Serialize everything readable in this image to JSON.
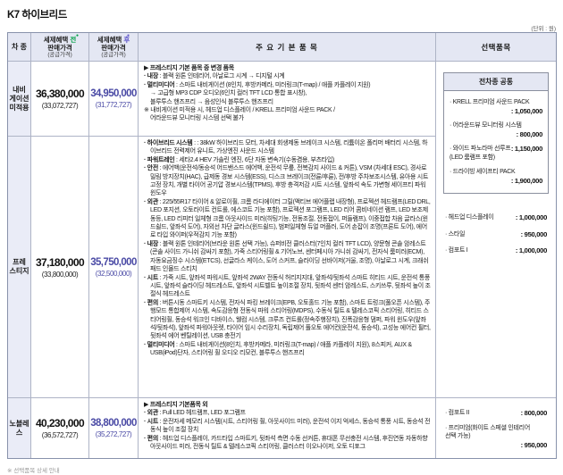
{
  "page": {
    "title": "K7 하이브리드",
    "unit_note": "(단위 : 원)",
    "footnote": "※ 선택품목 상세 안내"
  },
  "colors": {
    "header_bg": "#e4e7f3",
    "trim_bg": "#eaecf7",
    "accent_before": "#00a043",
    "accent_after": "#5a51c8",
    "price_after": "#4a4aa5",
    "border": "#aeb4c6"
  },
  "table": {
    "header": {
      "model": "차 종",
      "before": {
        "prefix": "세제혜택",
        "accent": "전",
        "dot": "●",
        "line2": "판매가격",
        "line3": "(공급가격)"
      },
      "after": {
        "prefix": "세제혜택",
        "accent": "후",
        "dot": "●",
        "line2": "판매가격",
        "line3": "(공급가격)"
      },
      "items": "주 요 기 본 품 목",
      "options": "선택품목"
    },
    "rows": [
      {
        "trim": "내비\n게이션\n미적용",
        "price_before": "36,380,000",
        "supply_before": "(33,072,727)",
        "price_after": "34,950,000",
        "supply_after": "(31,772,727)",
        "section_header": "▶ 프레스티지 기본 품목 중 변경 품목",
        "items": [
          {
            "label": "· 내장",
            "text": " : 블랙 원톤 인테리어, 아날로그 시계 → 디지털 시계"
          },
          {
            "label": "· 멀티미디어",
            "text": " : 스마트 내비게이션 (8인치, 후방카메라, 미러링크(T-map) / 애플 카플레이 지원)\n→ 고급형 MP3 CDP 오디오(6인치 컬러 TFT LCD 통합 표시창),\n블루투스 핸즈프리 → 음성인식 블루투스 핸즈프리"
          },
          {
            "label": "",
            "text": "※ 내비게이션 미적용 시, 헤드업 디스플레이 / KRELL 프리미엄 사운드 PACK /\n어라운드뷰 모니터링 시스템 선택 불가"
          }
        ]
      },
      {
        "trim": "프레\n스티지",
        "price_before": "37,180,000",
        "supply_before": "(33,800,000)",
        "price_after": "35,750,000",
        "supply_after": "(32,500,000)",
        "items": [
          {
            "label": "· 하이브리드 시스템",
            "text": " : : 38kW 하이브리드 모터, 차세대 회생제동 브레이크 시스템, 리튬이온 폴리머 배터리 시스템, 하이브리드 전력제어 유니트, 가상엔진 사운드 시스템"
          },
          {
            "label": "· 파워트레인",
            "text": " : 세타2.4 HEV 가솔린 엔진, 6단 자동 변속기(수동겸용, 부츠타입)"
          },
          {
            "label": "· 안전",
            "text": " : 에어백(운전석/동승석 어드밴스드 에어백, 운전석 무릎, 전복감지 사이드 & 커튼), VSM (차세대 ESC), 경사로 밀림 방지장치(HAC), 급제동 경보 시스템(ESS), 디스크 브레이크(전륜/후륜), 전/후방 주차보조시스템, 유아용 시트 고정 장치, 개별 타이어 공기압 경보시스템(TPMS), 후방 충격저감 시트 시스템, 앞좌석 속도 가변형 세이프티 파워 윈도우"
          },
          {
            "label": "· 외관",
            "text": " : 225/55R17 타이어 & 알로이휠, 크롬 라디에이터 그릴(액티브 에어플랩 내장형), 프로젝션 헤드램프(LED DRL, LED 포지션, 오토라이트 컨트롤, 에스코트 기능 포함), 프로젝션 포그램프, LED 리어 콤비네이션 램프, LED 보조제동등, LED 리피터 일체형 크롬 아웃사이드 미러(히팅기능, 전동조절, 전동접이, 퍼들램프), 이중접합 차음 글라스(윈드쉴드, 앞좌석 도어), 자외선 차단 글라스(윈드쉴드), 범퍼일체형 듀얼 머플러, 도어 손잡이 조명(프론트 도어), 에어로 타입 와이퍼(우적감지 기능 포함)"
          },
          {
            "label": "· 내장",
            "text": " : 블랙 원톤 인테리어(브라운 원톤 선택 가능), 슈퍼비전 클러스터(7인치 컬러 TFT LCD), 양문형 콘솔 암레스트 (콘솔 사이드 가니쉬 감싸기 포함), 가죽 스티어링휠 & 기어노브, 센터페시아 가니쉬 감싸기, 전자식 룸미러(ECM), 자동요금징수 시스템(ETCS), 선글라스 케이스, 도어 스커프, 슬라이딩 선바이저(거울, 조명), 아날로그 시계, 크래쉬패드 인몰드 스티치"
          },
          {
            "label": "· 시트",
            "text": " : 가죽 시트, 앞좌석 파워시트, 앞좌석 2WAY 전동식 허리지지대, 앞좌석/뒷좌석 스마트 히티드 시트, 운전석 통풍 시트, 앞좌석 슬라이딩 헤드레스트, 앞좌석 시트벨트 높이조절 장치, 뒷좌석 센터 암레스트, 스키쓰루, 뒷좌석 높이 조절식 헤드레스트"
          },
          {
            "label": "· 편의",
            "text": " : 버튼시동 스마트키 시스템, 전자식 파킹 브레이크(EPB, 오토홀드 기능 포함), 스마트 트렁크(풀오픈 시스템), 주행모드 통합제어 시스템, 속도감응형 전동식 파워 스티어링(MDPS), 수동식 틸트 & 텔레스코픽 스티어링, 히티드 스티어링휠, 동승석 워크인 디바이스, 웰컴 시스템, 크루즈 컨트롤(정속주행장치), 진폭감응형 댐퍼, 파워 윈도우(앞좌석/뒷좌석), 앞좌석 파워아웃렛, 타이어 임시 수리장치, 독립제어 풀오토 에어컨(운전석, 동승석), 고성능 에어컨 필터, 뒷좌석 에어 벤틸레이션, USB 충전기"
          },
          {
            "label": "· 멀티미디어",
            "text": " : 스마트 내비게이션(8인치, 후방카메라, 미러링크(T-map) / 애플 카플레이 지원), 8스피커, AUX & USB(iPod)단자, 스티어링 휠 오디오 리모컨, 블루투스 핸즈프리"
          }
        ]
      },
      {
        "trim": "노블레스",
        "price_before": "40,230,000",
        "supply_before": "(36,572,727)",
        "price_after": "38,800,000",
        "supply_after": "(35,272,727)",
        "section_header": "▶ 프레스티지 기본품목 외",
        "items": [
          {
            "label": "· 외관",
            "text": " : Full LED 헤드램프, LED 포그램프"
          },
          {
            "label": "· 시트",
            "text": " : 운전자세 메모리 시스템(시트, 스티어링 휠, 아웃사이드 미러), 운전석 이지 억세스, 동승석 통풍 시트, 동승석 전동식 높이 조절 장치"
          },
          {
            "label": "· 편의",
            "text": " : 헤드업 디스플레이, 카드타입 스마트키, 뒷좌석 측면 수동 선커튼, 휴대폰 무선충전 시스템, 후진연동 자동하향 아웃사이드 미러, 전동식 틸트 & 텔레스코픽 스티어링, 클러스터 이오나이저, 오토 디포그"
          }
        ]
      }
    ],
    "options": {
      "common": {
        "box_title": "전차종 공통",
        "items": [
          {
            "name": "· KRELL 프리미엄 사운드 PACK",
            "price": ": 1,050,000"
          },
          {
            "name": "· 어라운드뷰 모니터링 시스템",
            "price": ": 800,000"
          },
          {
            "name": "· 와이드 파노라마 선루프\n(LED 룸램프 포함)",
            "price": ": 1,150,000"
          },
          {
            "name": "· 드라이빙 세이프티 PACK",
            "price": ": 1,900,000"
          }
        ],
        "extra_items": [
          {
            "name": "· 헤드업 디스플레이",
            "price": ": 1,000,000"
          },
          {
            "name": "· 스타일",
            "price": ": 950,000"
          },
          {
            "name": "· 컴포트 I",
            "price": ": 1,000,000"
          }
        ]
      },
      "noblesse": {
        "items": [
          {
            "name": "· 컴포트 II",
            "price": ": 800,000"
          },
          {
            "name": "· 프리미엄(화이트 스페셜 인테리어\n선택 가능)",
            "price": ": 950,000"
          }
        ]
      }
    }
  }
}
